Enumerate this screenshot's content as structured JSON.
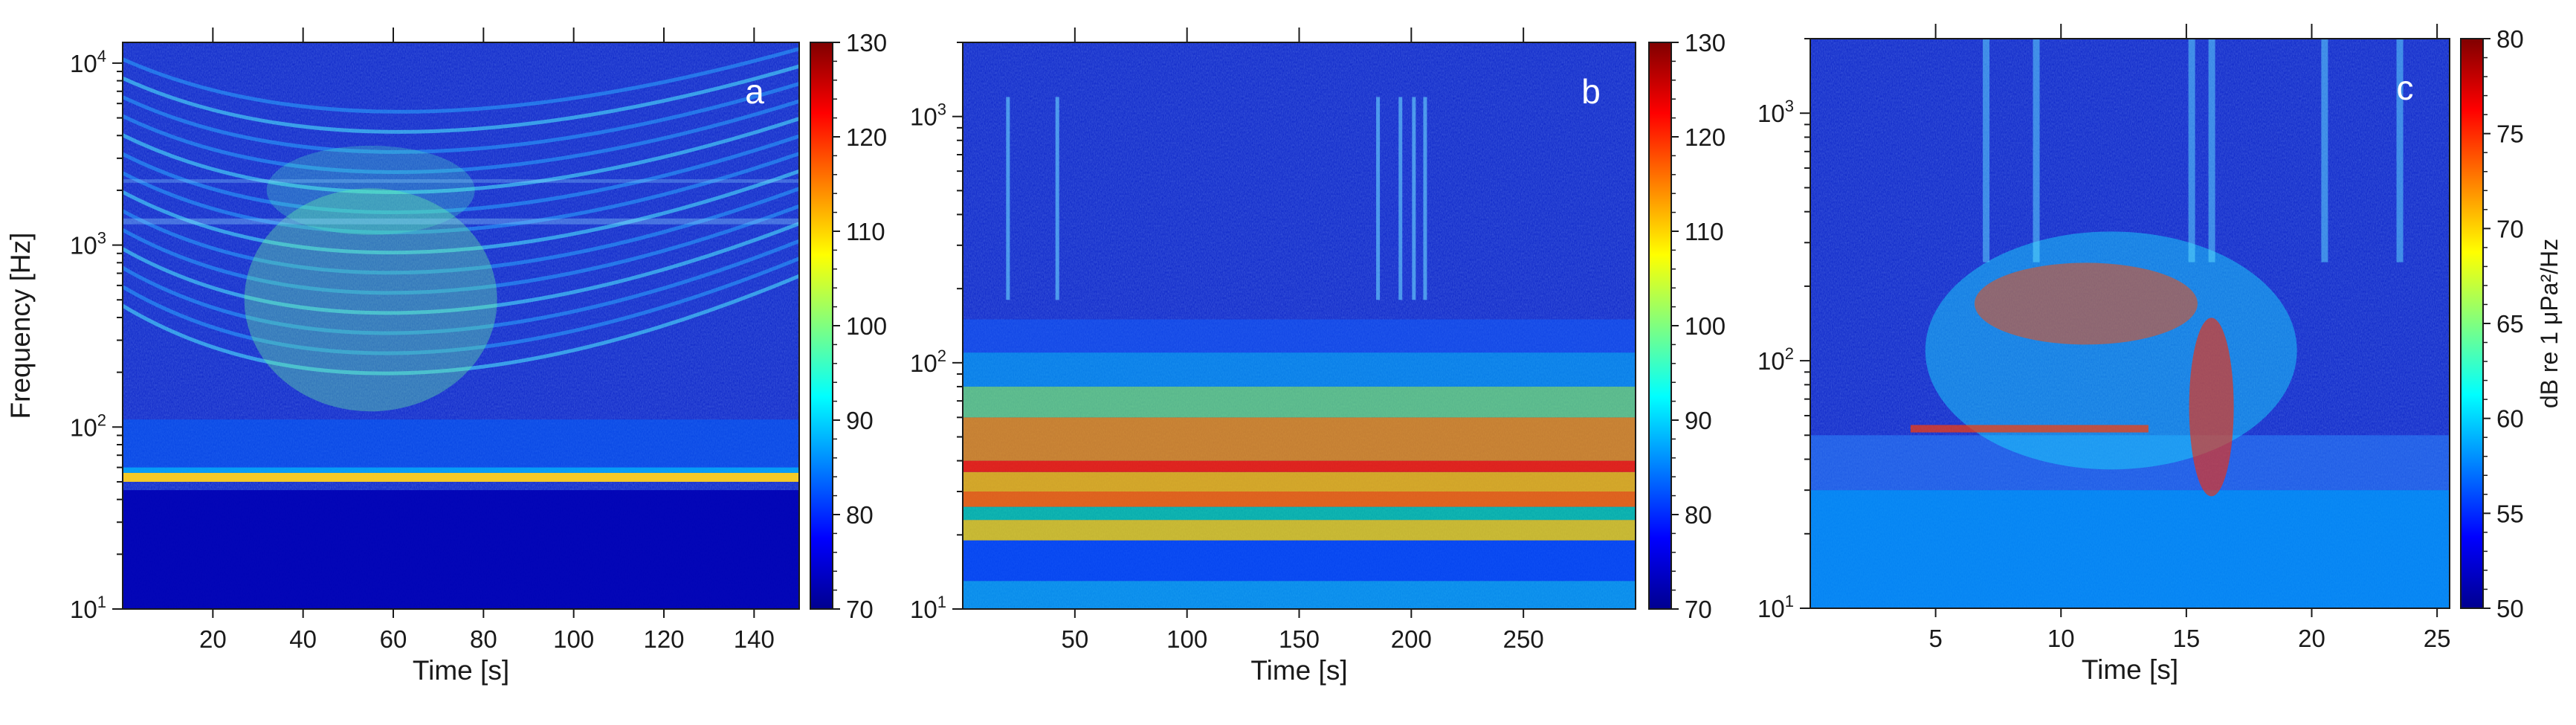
{
  "chart_data": [
    {
      "type": "heatmap",
      "panel_label": "a",
      "xlabel": "Time [s]",
      "ylabel": "Frequency [Hz]",
      "xlim": [
        0,
        150
      ],
      "ylim": [
        10,
        13000
      ],
      "yscale": "log",
      "x_ticks": [
        20,
        40,
        60,
        80,
        100,
        120,
        140
      ],
      "y_ticks": [
        10,
        100,
        1000,
        10000
      ],
      "colorbar": {
        "ticks": [
          70,
          80,
          90,
          100,
          110,
          120,
          130
        ],
        "range": [
          70,
          130
        ]
      }
    },
    {
      "type": "heatmap",
      "panel_label": "b",
      "xlabel": "Time [s]",
      "ylabel": "",
      "xlim": [
        0,
        300
      ],
      "ylim": [
        10,
        2000
      ],
      "yscale": "log",
      "x_ticks": [
        50,
        100,
        150,
        200,
        250
      ],
      "y_ticks": [
        10,
        100,
        1000
      ],
      "colorbar": {
        "ticks": [
          70,
          80,
          90,
          100,
          110,
          120,
          130
        ],
        "range": [
          70,
          130
        ]
      }
    },
    {
      "type": "heatmap",
      "panel_label": "c",
      "xlabel": "Time [s]",
      "ylabel": "",
      "xlim": [
        0,
        25.5
      ],
      "ylim": [
        10,
        2000
      ],
      "yscale": "log",
      "x_ticks": [
        5,
        10,
        15,
        20,
        25
      ],
      "y_ticks": [
        10,
        100,
        1000
      ],
      "colorbar": {
        "ticks": [
          50,
          55,
          60,
          65,
          70,
          75,
          80
        ],
        "range": [
          50,
          80
        ],
        "label": "dB re 1 μPa²/Hz"
      }
    }
  ]
}
